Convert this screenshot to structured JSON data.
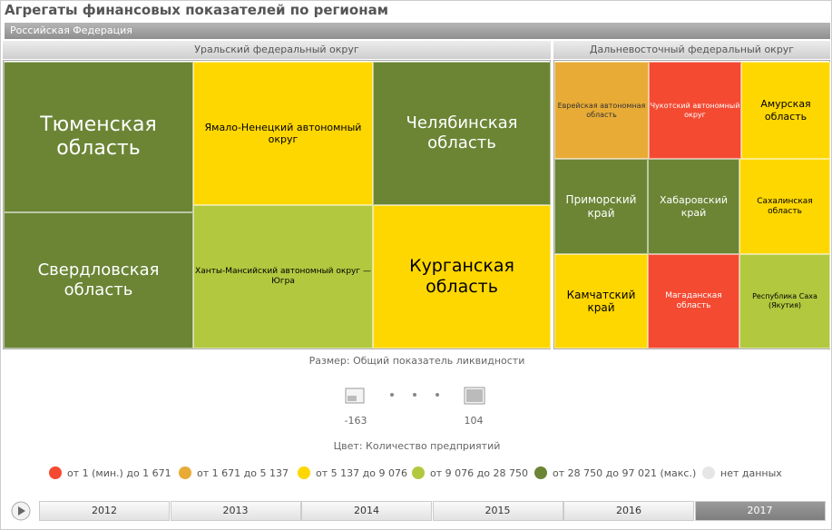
{
  "title": "Агрегаты финансовых показателей по регионам",
  "root": "Российская Федерация",
  "groups": [
    {
      "name": "Уральский федеральный округ",
      "cells": [
        {
          "label": "Тюменская область",
          "color": "#6b8535"
        },
        {
          "label": "Свердловская область",
          "color": "#6b8535"
        },
        {
          "label": "Ямало-Ненецкий автономный округ",
          "color": "#ffd700"
        },
        {
          "label": "Ханты-Мансийский автономный округ — Югра",
          "color": "#b2c83f"
        },
        {
          "label": "Челябинская область",
          "color": "#6b8535"
        },
        {
          "label": "Курганская область",
          "color": "#ffd700"
        }
      ]
    },
    {
      "name": "Дальневосточный федеральный округ",
      "cells": [
        {
          "label": "Еврейская автономная область",
          "color": "#e8ab36"
        },
        {
          "label": "Чукотский автономный округ",
          "color": "#f44a32"
        },
        {
          "label": "Амурская область",
          "color": "#ffd700"
        },
        {
          "label": "Приморский край",
          "color": "#6b8535"
        },
        {
          "label": "Хабаровский край",
          "color": "#6b8535"
        },
        {
          "label": "Сахалинская область",
          "color": "#ffd700"
        },
        {
          "label": "Камчатский край",
          "color": "#ffd700"
        },
        {
          "label": "Магаданская область",
          "color": "#f44a32"
        },
        {
          "label": "Республика Саха (Якутия)",
          "color": "#b2c83f"
        }
      ]
    }
  ],
  "size_legend": {
    "label": "Размер: Общий показатель ликвидности",
    "min": -163,
    "max": 104
  },
  "color_legend": {
    "label": "Цвет: Количество предприятий",
    "items": [
      {
        "label": "от 1 (мин.) до 1 671",
        "color": "#f44a32"
      },
      {
        "label": "от 1 671 до 5 137",
        "color": "#e8ab36"
      },
      {
        "label": "от 5 137 до 9 076",
        "color": "#ffd700"
      },
      {
        "label": "от 9 076 до 28 750",
        "color": "#b2c83f"
      },
      {
        "label": "от 28 750 до 97 021 (макс.)",
        "color": "#6b8535"
      },
      {
        "label": "нет данных",
        "color": "#e6e6e6"
      }
    ]
  },
  "timeline": {
    "years": [
      "2012",
      "2013",
      "2014",
      "2015",
      "2016",
      "2017"
    ],
    "selected": 5
  }
}
